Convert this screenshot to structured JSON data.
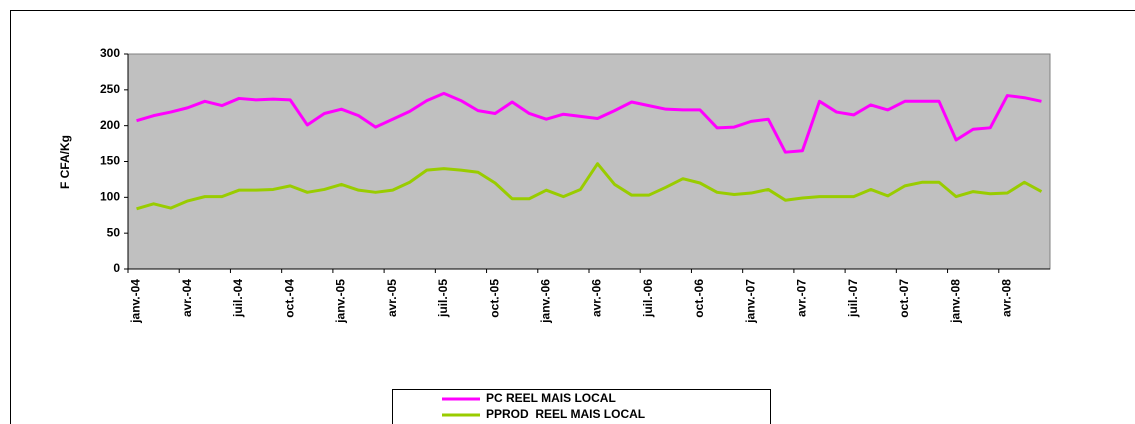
{
  "chart_data": {
    "type": "line",
    "y_label": "F CFA/Kg",
    "categories": [
      "janv.-04",
      null,
      null,
      "avr.-04",
      null,
      null,
      "juil.-04",
      null,
      null,
      "oct.-04",
      null,
      null,
      "janv.-05",
      null,
      null,
      "avr.-05",
      null,
      null,
      "juil.-05",
      null,
      null,
      "oct.-05",
      null,
      null,
      "janv.-06",
      null,
      null,
      "avr.-06",
      null,
      null,
      "juil.-06",
      null,
      null,
      "oct.-06",
      null,
      null,
      "janv.-07",
      null,
      null,
      "avr.-07",
      null,
      null,
      "juil.-07",
      null,
      null,
      "oct.-07",
      null,
      null,
      "janv.-08",
      null,
      null,
      "avr.-08",
      null,
      null
    ],
    "series": [
      {
        "name": "PC REEL MAIS LOCAL",
        "color": "#ff00ff",
        "values": [
          207,
          214,
          219,
          225,
          234,
          228,
          238,
          236,
          237,
          236,
          201,
          217,
          223,
          214,
          198,
          209,
          220,
          235,
          245,
          235,
          221,
          217,
          233,
          217,
          209,
          216,
          213,
          210,
          221,
          233,
          228,
          223,
          222,
          222,
          197,
          198,
          206,
          209,
          163,
          165,
          234,
          219,
          215,
          229,
          222,
          234,
          234,
          234,
          180,
          195,
          197,
          242,
          239,
          234
        ]
      },
      {
        "name": "PPROD  REEL MAIS LOCAL",
        "color": "#99cc00",
        "values": [
          84,
          91,
          85,
          95,
          101,
          101,
          110,
          110,
          111,
          116,
          107,
          111,
          118,
          110,
          107,
          110,
          121,
          138,
          140,
          138,
          135,
          120,
          98,
          98,
          110,
          101,
          111,
          147,
          118,
          103,
          103,
          114,
          126,
          120,
          107,
          104,
          106,
          111,
          96,
          99,
          101,
          101,
          101,
          111,
          102,
          116,
          121,
          121,
          101,
          108,
          105,
          106,
          121,
          108
        ]
      }
    ],
    "ylim": [
      0,
      300
    ],
    "yticks": [
      0,
      50,
      100,
      150,
      200,
      250,
      300
    ],
    "plot_background": "#c0c0c0",
    "grid": false,
    "legend": "bottom"
  }
}
